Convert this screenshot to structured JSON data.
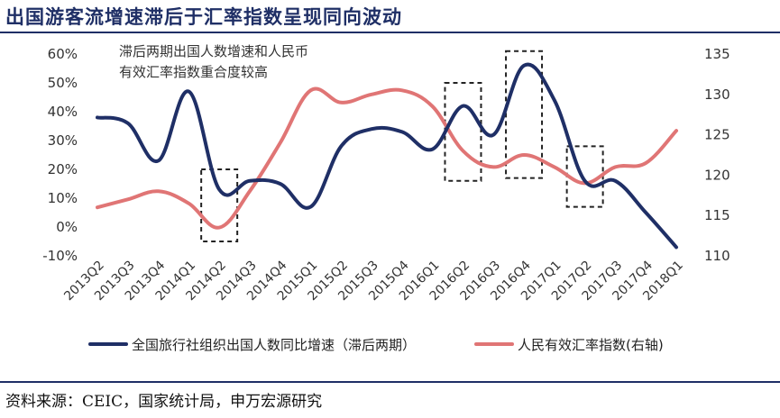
{
  "title": "出国游客流增速滞后于汇率指数呈现同向波动",
  "source": "资料来源：CEIC，国家统计局，申万宏源研究",
  "annotation_lines": [
    "滞后两期出国人数增速和人民币",
    "有效汇率指数重合度较高"
  ],
  "colors": {
    "title": "#1f2f66",
    "series_left": "#1f2f66",
    "series_right": "#e07575",
    "box": "#222222"
  },
  "chart_data": {
    "type": "line",
    "categories": [
      "2013Q2",
      "2013Q3",
      "2013Q4",
      "2014Q1",
      "2014Q2",
      "2014Q3",
      "2014Q4",
      "2015Q1",
      "2015Q2",
      "2015Q3",
      "2015Q4",
      "2016Q1",
      "2016Q2",
      "2016Q3",
      "2016Q4",
      "2017Q1",
      "2017Q2",
      "2017Q3",
      "2017Q4",
      "2018Q1"
    ],
    "series": [
      {
        "name": "全国旅行社组织出国人数同比增速（滞后两期）",
        "axis": "left",
        "values": [
          38,
          36,
          23,
          47,
          13,
          16,
          15,
          7,
          28,
          34,
          33,
          27,
          42,
          32,
          56,
          44,
          16,
          16,
          5,
          -7
        ]
      },
      {
        "name": "人民有效汇率指数(右轴)",
        "axis": "right",
        "values": [
          116,
          117,
          118,
          116.5,
          113.5,
          118,
          124,
          130.5,
          129,
          130,
          130.5,
          128.5,
          123,
          121,
          122.5,
          121,
          119,
          121,
          121.5,
          125.5
        ]
      }
    ],
    "left_axis": {
      "min": -10,
      "max": 60,
      "step": 10,
      "ticks": [
        "-10%",
        "0%",
        "10%",
        "20%",
        "30%",
        "40%",
        "50%",
        "60%"
      ]
    },
    "right_axis": {
      "min": 110,
      "max": 135,
      "step": 5,
      "ticks": [
        "110",
        "115",
        "120",
        "125",
        "130",
        "135"
      ]
    },
    "highlights": [
      {
        "from": "2014Q2",
        "to": "2014Q2",
        "top": 20,
        "bottom": -5
      },
      {
        "from": "2016Q2",
        "to": "2016Q2",
        "top": 50,
        "bottom": 16
      },
      {
        "from": "2016Q4",
        "to": "2016Q4",
        "top": 61,
        "bottom": 17
      },
      {
        "from": "2017Q2",
        "to": "2017Q2",
        "top": 28,
        "bottom": 7
      }
    ],
    "grid": false,
    "legend": "bottom"
  }
}
